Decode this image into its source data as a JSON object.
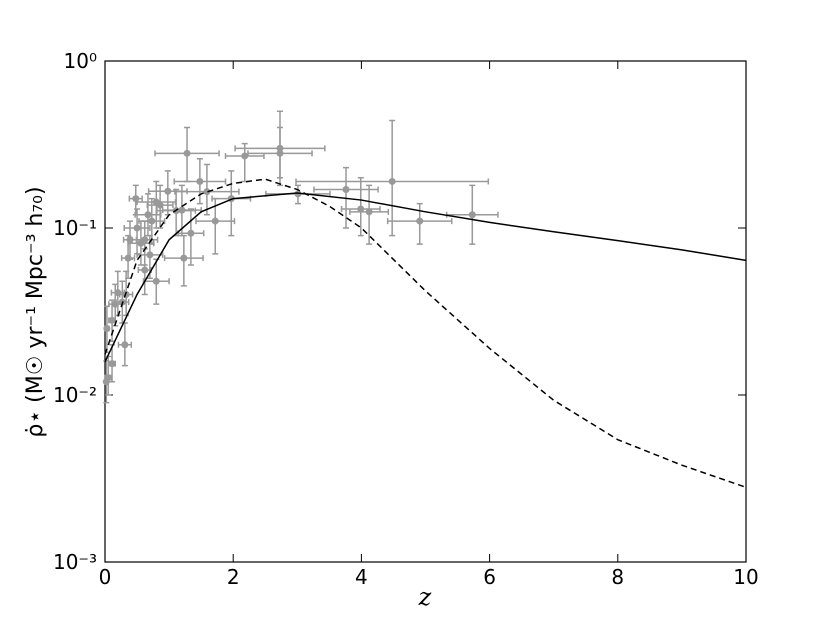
{
  "chart_data": {
    "type": "scatter",
    "x_label": "z",
    "y_label": "ρ̇⋆ (M☉ yr⁻¹ Mpc⁻³ h₇₀)",
    "xlim": [
      0,
      10
    ],
    "ylim": [
      0.001,
      1
    ],
    "log_y": true,
    "xticks": [
      0,
      2,
      4,
      6,
      8,
      10
    ],
    "yticks": [
      {
        "value": 0.001,
        "label": "10⁻³"
      },
      {
        "value": 0.01,
        "label": "10⁻²"
      },
      {
        "value": 0.1,
        "label": "10⁻¹"
      },
      {
        "value": 1,
        "label": "10⁰"
      }
    ],
    "points": {
      "color": "#999999",
      "x": [
        2.73,
        2.73,
        2.18,
        1.28,
        3.76,
        4.48,
        3.99,
        4.12,
        4.91,
        5.73,
        3.01,
        1.97,
        1.72,
        1.59,
        1.48,
        1.34,
        1.23,
        1.2,
        1.11,
        0.98,
        0.86,
        0.8,
        0.73,
        0.67,
        0.62,
        0.56,
        0.5,
        0.48,
        0.39,
        0.36,
        0.33,
        0.27,
        0.2,
        0.16,
        0.11,
        0.11,
        0.03,
        0.02,
        0.05,
        0.31,
        0.7,
        0.8,
        0.62
      ],
      "xerr": [
        0.7,
        0.5,
        0.3,
        0.5,
        0.5,
        1.5,
        0.3,
        0.3,
        0.5,
        0.4,
        0.5,
        0.3,
        0.3,
        0.5,
        0.4,
        0.2,
        0.3,
        0.3,
        0.3,
        0.3,
        0.2,
        0.3,
        0.2,
        0.2,
        0.2,
        0.2,
        0.2,
        0.1,
        0.1,
        0.1,
        0.1,
        0.1,
        0.1,
        0.1,
        0.05,
        0.05,
        0.03,
        0.02,
        0.05,
        0.1,
        0.2,
        0.2,
        0.1
      ],
      "values": [
        0.3,
        0.28,
        0.27,
        0.28,
        0.17,
        0.19,
        0.13,
        0.125,
        0.11,
        0.12,
        0.16,
        0.15,
        0.11,
        0.165,
        0.19,
        0.093,
        0.066,
        0.128,
        0.127,
        0.166,
        0.137,
        0.143,
        0.11,
        0.12,
        0.085,
        0.081,
        0.1,
        0.15,
        0.085,
        0.066,
        0.04,
        0.036,
        0.041,
        0.035,
        0.028,
        0.0154,
        0.025,
        0.012,
        0.0127,
        0.02,
        0.069,
        0.048,
        0.056
      ],
      "ylow": [
        0.2,
        0.18,
        0.19,
        0.19,
        0.1,
        0.09,
        0.09,
        0.08,
        0.08,
        0.08,
        0.14,
        0.09,
        0.07,
        0.12,
        0.14,
        0.06,
        0.045,
        0.09,
        0.09,
        0.12,
        0.1,
        0.1,
        0.08,
        0.09,
        0.06,
        0.06,
        0.07,
        0.12,
        0.065,
        0.05,
        0.03,
        0.027,
        0.03,
        0.026,
        0.021,
        0.012,
        0.018,
        0.009,
        0.01,
        0.015,
        0.05,
        0.035,
        0.04
      ],
      "yhigh": [
        0.5,
        0.4,
        0.32,
        0.4,
        0.23,
        0.44,
        0.2,
        0.18,
        0.14,
        0.18,
        0.18,
        0.22,
        0.15,
        0.24,
        0.26,
        0.13,
        0.09,
        0.18,
        0.17,
        0.22,
        0.18,
        0.19,
        0.15,
        0.16,
        0.11,
        0.11,
        0.13,
        0.18,
        0.11,
        0.09,
        0.055,
        0.048,
        0.055,
        0.046,
        0.037,
        0.02,
        0.034,
        0.016,
        0.017,
        0.027,
        0.09,
        0.065,
        0.075
      ]
    },
    "lines": [
      {
        "color": "#000000",
        "dash": false,
        "x": [
          0,
          0.5,
          1,
          1.5,
          2,
          3,
          4,
          5,
          6,
          7,
          8,
          9,
          10
        ],
        "values": [
          0.0158,
          0.04,
          0.085,
          0.125,
          0.15,
          0.162,
          0.147,
          0.125,
          0.108,
          0.095,
          0.084,
          0.074,
          0.064
        ]
      },
      {
        "color": "#000000",
        "dash": true,
        "x": [
          0,
          0.5,
          1,
          1.5,
          2,
          2.5,
          3,
          3.5,
          4,
          5,
          6,
          7,
          8,
          9,
          10
        ],
        "values": [
          0.0175,
          0.064,
          0.12,
          0.16,
          0.185,
          0.196,
          0.17,
          0.135,
          0.1,
          0.042,
          0.019,
          0.0093,
          0.0054,
          0.0038,
          0.0028
        ]
      }
    ]
  }
}
